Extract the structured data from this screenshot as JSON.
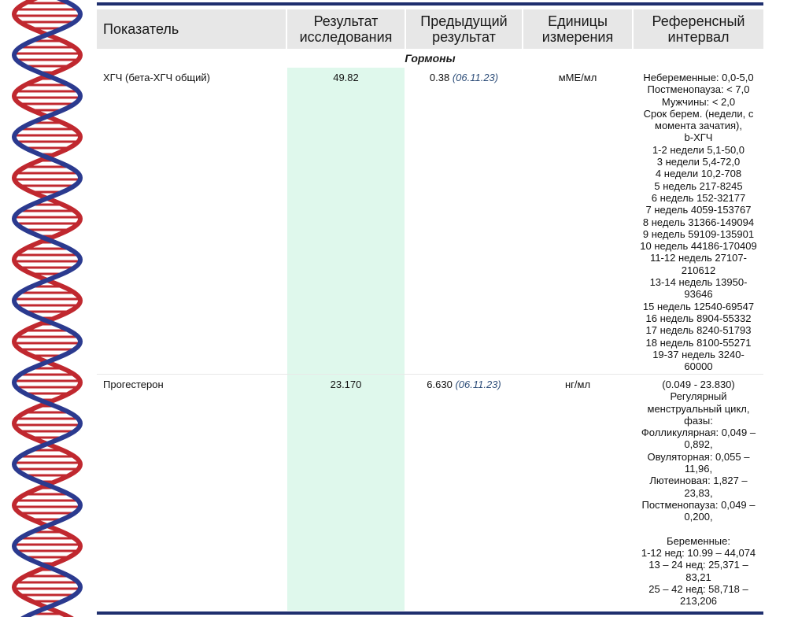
{
  "header": {
    "col_indicator": "Показатель",
    "col_result": "Результат исследования",
    "col_previous": "Предыдущий результат",
    "col_units": "Единицы измерения",
    "col_reference": "Референсный интервал"
  },
  "section_title": "Гормоны",
  "rows": [
    {
      "name": "ХГЧ (бета-ХГЧ общий)",
      "result": "49.82",
      "previous_value": "0.38",
      "previous_date": "(06.11.23)",
      "units": "мМЕ/мл",
      "reference_lines": [
        "Небеременные: 0,0-5,0",
        "Постменопауза: < 7,0",
        "Мужчины: < 2,0",
        "Срок берем. (недели, с",
        "момента зачатия),",
        "b-ХГЧ",
        "1-2 недели 5,1-50,0",
        "3 недели 5,4-72,0",
        "4 недели 10,2-708",
        "5 недель 217-8245",
        "6 недель 152-32177",
        "7 недель 4059-153767",
        "8 недель 31366-149094",
        "9 недель 59109-135901",
        "10 недель 44186-170409",
        "11-12 недель 27107-",
        "210612",
        "13-14 недель 13950-",
        "93646",
        "15 недель 12540-69547",
        "16 недель 8904-55332",
        "17 недель 8240-51793",
        "18 недель 8100-55271",
        "19-37 недель 3240-",
        "60000"
      ]
    },
    {
      "name": "Прогестерон",
      "result": "23.170",
      "previous_value": "6.630",
      "previous_date": "(06.11.23)",
      "units": "нг/мл",
      "reference_lines": [
        "(0.049 - 23.830)",
        "Регулярный",
        "менструальный цикл,",
        "фазы:",
        "Фолликулярная: 0,049 –",
        "0,892,",
        "Овуляторная: 0,055 –",
        "11,96,",
        "Лютеиновая: 1,827 –",
        "23,83,",
        "Постменопауза: 0,049 –",
        "0,200,",
        "",
        "Беременные:",
        "1-12 нед: 10.99 – 44,074",
        "13 – 24 нед: 25,371 –",
        "83,21",
        "25 – 42 нед: 58,718 –",
        "213,206"
      ]
    }
  ],
  "colors": {
    "header_bg": "#e7e7e7",
    "result_band": "#dff8ec",
    "rule": "#1f2f6e",
    "date": "#2f4f7a",
    "dna_red": "#c0282f",
    "dna_blue": "#2b3a8f"
  }
}
